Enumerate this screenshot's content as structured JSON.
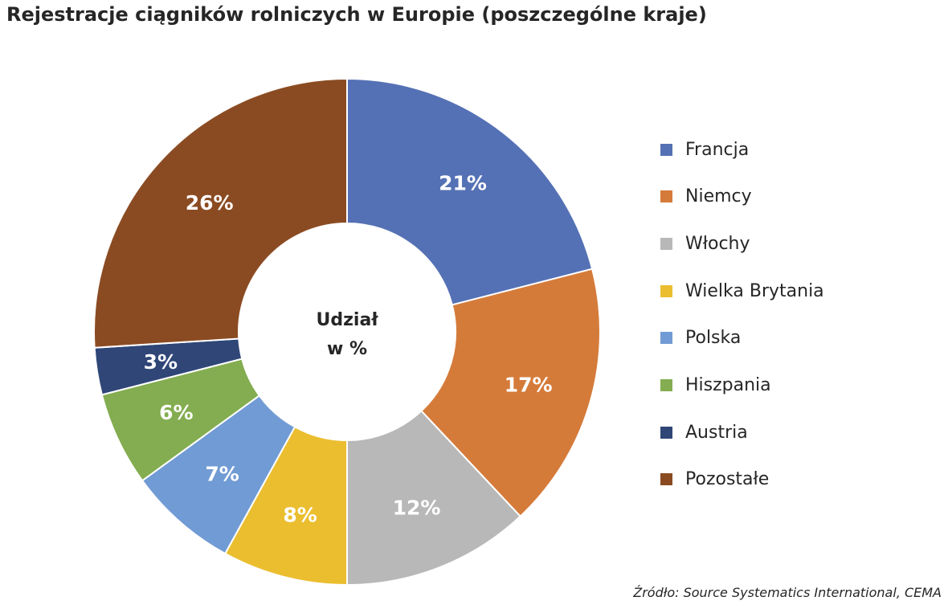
{
  "title": "Rejestracje ciągników rolniczych w Europie (poszczególne kraje)",
  "source": "Źródło: Source Systematics International, CEMA",
  "chart_data": {
    "type": "pie",
    "donut": true,
    "center_label": [
      "Udział",
      "w %"
    ],
    "unit": "%",
    "legend_position": "right",
    "slices": [
      {
        "name": "Francja",
        "value": 21,
        "label": "21%",
        "color": "#5571b5"
      },
      {
        "name": "Niemcy",
        "value": 17,
        "label": "17%",
        "color": "#d57b3a"
      },
      {
        "name": "Włochy",
        "value": 12,
        "label": "12%",
        "color": "#b8b8b8"
      },
      {
        "name": "Wielka Brytania",
        "value": 8,
        "label": "8%",
        "color": "#ebbe30"
      },
      {
        "name": "Polska",
        "value": 7,
        "label": "7%",
        "color": "#719bd4"
      },
      {
        "name": "Hiszpania",
        "value": 6,
        "label": "6%",
        "color": "#83ad50"
      },
      {
        "name": "Austria",
        "value": 3,
        "label": "3%",
        "color": "#2f4677"
      },
      {
        "name": "Pozostałe",
        "value": 26,
        "label": "26%",
        "color": "#8b4b22"
      }
    ]
  }
}
